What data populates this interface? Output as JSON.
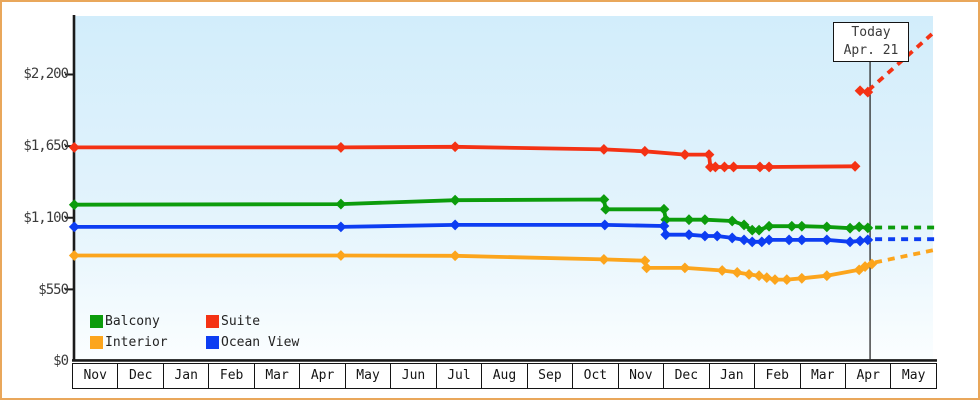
{
  "chart_data": {
    "type": "line",
    "title": "",
    "y_axis": {
      "tick_labels": [
        "$0",
        "$550",
        "$1,100",
        "$1,650",
        "$2,200"
      ],
      "tick_values": [
        0,
        550,
        1100,
        1650,
        2200
      ],
      "ylim": [
        0,
        2450
      ],
      "currency": "USD"
    },
    "x_axis": {
      "months": [
        "Nov",
        "Dec",
        "Jan",
        "Feb",
        "Mar",
        "Apr",
        "May",
        "Jun",
        "Jul",
        "Aug",
        "Sep",
        "Oct",
        "Nov",
        "Dec",
        "Jan",
        "Feb",
        "Mar",
        "Apr",
        "May"
      ]
    },
    "today_marker": {
      "line1": "Today",
      "line2": "Apr. 21",
      "month_index": 17.54
    },
    "legend": [
      {
        "label": "Balcony",
        "color": "#0c9c0c"
      },
      {
        "label": "Suite",
        "color": "#f43214"
      },
      {
        "label": "Interior",
        "color": "#fca51d"
      },
      {
        "label": "Ocean View",
        "color": "#0d3df2"
      }
    ],
    "grid": false,
    "legend_position": "bottom-left-inside",
    "series": [
      {
        "name": "Suite",
        "color": "#f43214",
        "solid": [
          [
            0.05,
            1640
          ],
          [
            5.91,
            1640
          ],
          [
            8.42,
            1645
          ],
          [
            11.69,
            1625
          ],
          [
            12.59,
            1610
          ],
          [
            13.47,
            1585
          ],
          [
            14.0,
            1585
          ],
          [
            14.03,
            1490
          ],
          [
            14.14,
            1490
          ],
          [
            14.34,
            1490
          ],
          [
            14.54,
            1490
          ],
          [
            15.12,
            1490
          ],
          [
            15.32,
            1490
          ],
          [
            17.21,
            1495
          ]
        ],
        "extra_markers": [
          [
            17.32,
            2075
          ],
          [
            17.49,
            2065
          ]
        ],
        "dashed": [
          [
            17.5,
            2078
          ],
          [
            18.9,
            2510
          ]
        ]
      },
      {
        "name": "Balcony",
        "color": "#0c9c0c",
        "solid": [
          [
            0.05,
            1200
          ],
          [
            5.91,
            1205
          ],
          [
            8.42,
            1235
          ],
          [
            11.69,
            1240
          ],
          [
            11.73,
            1165
          ],
          [
            13.01,
            1165
          ],
          [
            13.05,
            1085
          ],
          [
            13.56,
            1085
          ],
          [
            13.91,
            1085
          ],
          [
            14.51,
            1075
          ],
          [
            14.77,
            1045
          ],
          [
            14.95,
            1005
          ],
          [
            15.1,
            1005
          ],
          [
            15.32,
            1035
          ],
          [
            15.82,
            1035
          ],
          [
            16.04,
            1035
          ],
          [
            16.59,
            1030
          ],
          [
            17.1,
            1020
          ],
          [
            17.3,
            1030
          ],
          [
            17.49,
            1022
          ]
        ],
        "extra_markers": [],
        "dashed": [
          [
            17.65,
            1025
          ],
          [
            18.95,
            1025
          ]
        ]
      },
      {
        "name": "Ocean View",
        "color": "#0d3df2",
        "solid": [
          [
            0.05,
            1030
          ],
          [
            5.91,
            1030
          ],
          [
            8.42,
            1045
          ],
          [
            11.71,
            1045
          ],
          [
            13.01,
            1037
          ],
          [
            13.05,
            970
          ],
          [
            13.56,
            970
          ],
          [
            13.91,
            960
          ],
          [
            14.18,
            960
          ],
          [
            14.51,
            945
          ],
          [
            14.77,
            930
          ],
          [
            14.95,
            915
          ],
          [
            15.16,
            915
          ],
          [
            15.32,
            930
          ],
          [
            15.76,
            930
          ],
          [
            16.04,
            930
          ],
          [
            16.59,
            930
          ],
          [
            17.1,
            915
          ],
          [
            17.32,
            922
          ],
          [
            17.49,
            930
          ]
        ],
        "extra_markers": [],
        "dashed": [
          [
            17.65,
            935
          ],
          [
            18.95,
            935
          ]
        ]
      },
      {
        "name": "Interior",
        "color": "#fca51d",
        "solid": [
          [
            0.05,
            810
          ],
          [
            5.91,
            810
          ],
          [
            8.42,
            808
          ],
          [
            11.69,
            780
          ],
          [
            12.59,
            770
          ],
          [
            12.63,
            715
          ],
          [
            13.47,
            715
          ],
          [
            14.29,
            695
          ],
          [
            14.62,
            680
          ],
          [
            14.88,
            665
          ],
          [
            15.1,
            655
          ],
          [
            15.27,
            640
          ],
          [
            15.45,
            625
          ],
          [
            15.71,
            625
          ],
          [
            16.04,
            635
          ],
          [
            16.59,
            655
          ],
          [
            17.3,
            700
          ],
          [
            17.43,
            725
          ],
          [
            17.58,
            745
          ]
        ],
        "extra_markers": [],
        "dashed": [
          [
            17.65,
            757
          ],
          [
            18.95,
            852
          ]
        ]
      }
    ]
  }
}
